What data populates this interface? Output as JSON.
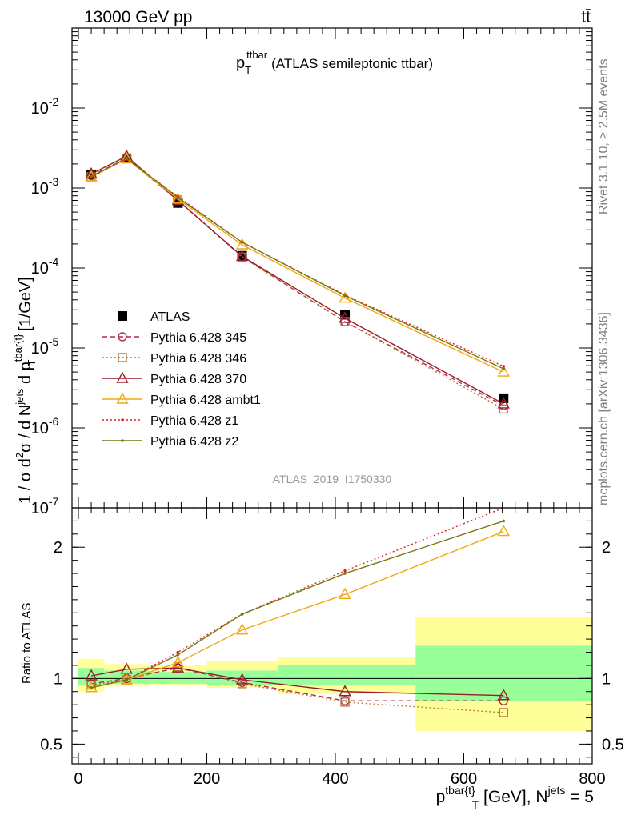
{
  "header": {
    "left_label": "13000 GeV pp",
    "right_label": "tt̄"
  },
  "side_labels": {
    "rivet": "Rivet 3.1.10, ≥ 2.5M events",
    "mcplots": "mcplots.cern.ch [arXiv:1306.3436]"
  },
  "chart_data": [
    {
      "type": "line",
      "title": "(ATLAS semileptonic ttbar)",
      "title_symbol": "p",
      "title_symbol_sub": "T",
      "title_symbol_sup": "ttbar",
      "ylabel": "1 / σ d²σ / d N^jets d p^tbar{t}_T [1/GeV]",
      "ylabel_parts": {
        "a": "1 / σ d",
        "b": "2",
        "c": "σ / d N",
        "d": "jets",
        "e": " d p",
        "f": "tbar{t}",
        "g": "T",
        "h": " [1/GeV]"
      },
      "yscale": "log",
      "ylim": [
        1e-07,
        0.1
      ],
      "xlim": [
        -10,
        800
      ],
      "y_ticks": [
        "10",
        "10",
        "10",
        "10",
        "10",
        "10"
      ],
      "y_tick_exponents": [
        "-7",
        "-6",
        "-5",
        "-4",
        "-3",
        "-2"
      ],
      "analysis_label": "ATLAS_2019_I1750330",
      "legend_position": "left-middle",
      "x": [
        20,
        75,
        155,
        255,
        415,
        662
      ],
      "series": [
        {
          "name": "ATLAS",
          "color": "#000000",
          "marker": "square",
          "line": "none",
          "values": [
            0.00148,
            0.00235,
            0.00065,
            0.000142,
            2.6e-05,
            2.35e-06
          ]
        },
        {
          "name": "Pythia 6.428 345",
          "color": "#b22a4a",
          "marker": "circle",
          "line": "dashed",
          "values": [
            0.00143,
            0.00235,
            0.0007,
            0.000138,
            2.12e-05,
            1.9e-06
          ]
        },
        {
          "name": "Pythia 6.428 346",
          "color": "#b07a3a",
          "marker": "square-open",
          "line": "dotted",
          "values": [
            0.00138,
            0.00232,
            0.00071,
            0.000137,
            2.14e-05,
            1.72e-06
          ]
        },
        {
          "name": "Pythia 6.428 370",
          "color": "#9b1c2c",
          "marker": "triangle",
          "line": "solid",
          "values": [
            0.0015,
            0.0025,
            0.0007,
            0.00014,
            2.35e-05,
            2e-06
          ]
        },
        {
          "name": "Pythia 6.428 ambt1",
          "color": "#f0a810",
          "marker": "triangle",
          "line": "solid",
          "values": [
            0.00138,
            0.00232,
            0.00073,
            0.000195,
            4.2e-05,
            5e-06
          ]
        },
        {
          "name": "Pythia 6.428 z1",
          "color": "#dd2222",
          "marker": "dot",
          "line": "dotted",
          "values": [
            0.00138,
            0.00232,
            0.00078,
            0.00021,
            4.6e-05,
            5.9e-06
          ]
        },
        {
          "name": "Pythia 6.428 z2",
          "color": "#777711",
          "marker": "dot",
          "line": "solid",
          "values": [
            0.0014,
            0.00235,
            0.00076,
            0.00021,
            4.5e-05,
            5.5e-06
          ]
        }
      ]
    },
    {
      "type": "line",
      "ylabel": "Ratio to ATLAS",
      "xlabel": "p^tbar{t}_T [GeV], N^jets = 5",
      "xlabel_parts": {
        "a": "p",
        "b": "tbar{t}",
        "c": "T",
        "d": " [GeV], N",
        "e": "jets",
        "f": " = 5"
      },
      "xlim": [
        -10,
        800
      ],
      "ylim": [
        0.35,
        2.3
      ],
      "x_ticks": [
        0,
        200,
        400,
        600,
        800
      ],
      "x_tick_labels": [
        "0",
        "200",
        "400",
        "600",
        "800"
      ],
      "y_ticks": [
        0.5,
        1,
        2
      ],
      "y_tick_labels": [
        "0.5",
        "1",
        "2"
      ],
      "uncertainty_bands": [
        {
          "x": [
            0,
            40
          ],
          "stat": [
            0.95,
            1.08
          ],
          "total": [
            0.9,
            1.15
          ]
        },
        {
          "x": [
            40,
            110
          ],
          "stat": [
            0.96,
            1.06
          ],
          "total": [
            0.94,
            1.11
          ]
        },
        {
          "x": [
            110,
            200
          ],
          "stat": [
            0.96,
            1.05
          ],
          "total": [
            0.95,
            1.1
          ]
        },
        {
          "x": [
            200,
            310
          ],
          "stat": [
            0.95,
            1.06
          ],
          "total": [
            0.93,
            1.13
          ]
        },
        {
          "x": [
            310,
            525
          ],
          "stat": [
            0.95,
            1.1
          ],
          "total": [
            0.88,
            1.16
          ]
        },
        {
          "x": [
            525,
            800
          ],
          "stat": [
            0.83,
            1.25
          ],
          "total": [
            0.6,
            1.47
          ]
        }
      ],
      "x": [
        20,
        75,
        155,
        255,
        415,
        662
      ],
      "series": [
        {
          "name": "Pythia 6.428 345",
          "color": "#b22a4a",
          "marker": "circle",
          "line": "dashed",
          "values": [
            0.96,
            1.0,
            1.08,
            0.97,
            0.83,
            0.83
          ]
        },
        {
          "name": "Pythia 6.428 346",
          "color": "#b07a3a",
          "marker": "square-open",
          "line": "dotted",
          "values": [
            0.95,
            0.99,
            1.09,
            0.96,
            0.82,
            0.74
          ]
        },
        {
          "name": "Pythia 6.428 370",
          "color": "#9b1c2c",
          "marker": "triangle",
          "line": "solid",
          "values": [
            1.02,
            1.07,
            1.08,
            0.99,
            0.9,
            0.87
          ]
        },
        {
          "name": "Pythia 6.428 ambt1",
          "color": "#f0a810",
          "marker": "triangle",
          "line": "solid",
          "values": [
            0.93,
            0.99,
            1.12,
            1.37,
            1.64,
            2.12
          ]
        },
        {
          "name": "Pythia 6.428 z1",
          "color": "#dd2222",
          "marker": "dot",
          "line": "dotted",
          "values": [
            0.93,
            0.99,
            1.2,
            1.49,
            1.82,
            2.55
          ]
        },
        {
          "name": "Pythia 6.428 z2",
          "color": "#777711",
          "marker": "dot",
          "line": "solid",
          "values": [
            0.93,
            0.99,
            1.18,
            1.49,
            1.8,
            2.2
          ]
        }
      ]
    }
  ]
}
